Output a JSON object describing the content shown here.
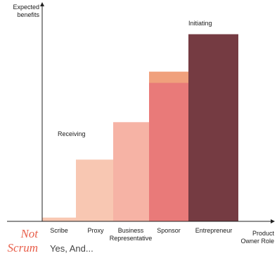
{
  "chart_data": {
    "type": "bar",
    "ylabel": "Expected benefits",
    "xlabel": "Product Owner Role",
    "categories": [
      "Scribe",
      "Proxy",
      "Business Representative",
      "Sponsor",
      "Entrepreneur"
    ],
    "values": [
      0.02,
      0.33,
      0.53,
      0.8,
      1.0
    ],
    "sponsor_lower_value": 0.74,
    "ylim": [
      0,
      1.1
    ],
    "colors": [
      "#f8c7b2",
      "#f8c7b2",
      "#f6b3a5",
      "#e97a79",
      "#753b42"
    ],
    "sponsor_top_color": "#f0a07c",
    "grid": false,
    "legend": "none",
    "annotations": {
      "receiving": "Receiving",
      "initiating": "Initiating",
      "not": "Not",
      "scrum": "Scrum",
      "yes_and": "Yes, And..."
    }
  },
  "axes": {
    "y_line1": "Expected",
    "y_line2": "benefits",
    "x_line1": "Product",
    "x_line2": "Owner Role",
    "cat_line1": [
      "Scribe",
      "Proxy",
      "Business",
      "Sponsor",
      "Entrepreneur"
    ],
    "cat_line2": [
      "",
      "",
      "Representative",
      "",
      ""
    ]
  }
}
